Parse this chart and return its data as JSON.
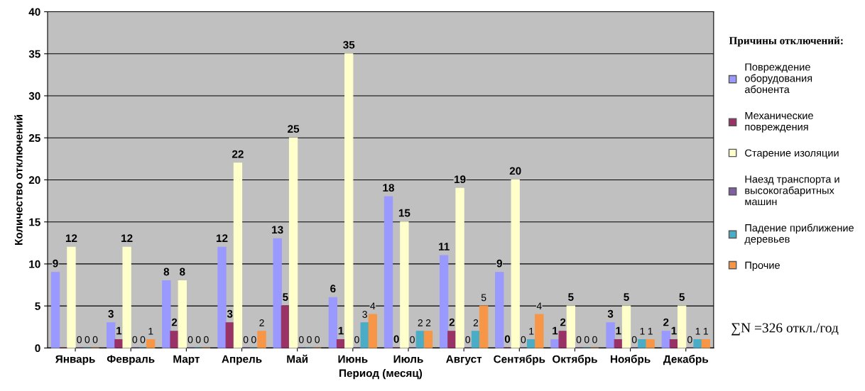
{
  "chart_data": {
    "type": "bar",
    "xlabel": "Период (месяц)",
    "ylabel": "Количество отключений",
    "legend_title": "Причины отключений:",
    "categories": [
      "Январь",
      "Февраль",
      "Март",
      "Апрель",
      "Май",
      "Июнь",
      "Июль",
      "Август",
      "Сентябрь",
      "Октябрь",
      "Ноябрь",
      "Декабрь"
    ],
    "series": [
      {
        "name": "Повреждение оборудования абонента",
        "color": "#9999ff",
        "values": [
          9,
          3,
          8,
          12,
          13,
          6,
          18,
          11,
          9,
          1,
          3,
          2
        ],
        "value_labels": [
          "9",
          "3",
          "8",
          "12",
          "13",
          "6",
          "18",
          "11",
          "9",
          "1",
          "3",
          "2"
        ]
      },
      {
        "name": "Механические повреждения",
        "color": "#993366",
        "values": [
          0,
          1,
          2,
          3,
          5,
          1,
          0,
          2,
          0,
          2,
          1,
          1
        ],
        "value_labels": [
          null,
          "1",
          "2",
          "3",
          "5",
          "1",
          "0",
          "2",
          "0",
          "2",
          "1",
          "1"
        ]
      },
      {
        "name": "Старение изоляции",
        "color": "#ffffcc",
        "values": [
          12,
          12,
          8,
          22,
          25,
          35,
          15,
          19,
          20,
          5,
          5,
          5
        ],
        "value_labels": [
          "12",
          "12",
          "8",
          "22",
          "25",
          "35",
          "15",
          "19",
          "20",
          "5",
          "5",
          "5"
        ]
      },
      {
        "name": "Наезд транспорта и высокогабаритных машин",
        "color": "#7f5f9f",
        "values": [
          0,
          0,
          0,
          0,
          0,
          0,
          0,
          0,
          0,
          0,
          0,
          0
        ],
        "value_labels": [
          "0",
          "0",
          "0",
          "0",
          "0",
          "0",
          "0",
          "0",
          "0",
          "0",
          "0",
          "0"
        ]
      },
      {
        "name": "Падение приближение деревьев",
        "color": "#4bacc6",
        "values": [
          0,
          0,
          0,
          0,
          0,
          3,
          2,
          2,
          1,
          0,
          1,
          1
        ],
        "value_labels": [
          "0",
          "0",
          "0",
          "0",
          "0",
          "3",
          "2",
          "2",
          "1",
          "0",
          "1",
          "1"
        ]
      },
      {
        "name": "Прочие",
        "color": "#f79646",
        "values": [
          0,
          1,
          0,
          2,
          0,
          4,
          2,
          5,
          4,
          0,
          1,
          1
        ],
        "value_labels": [
          "0",
          "1",
          "0",
          "2",
          "0",
          "4",
          "2",
          "5",
          "4",
          "0",
          "1",
          "1"
        ]
      }
    ],
    "ylim": [
      0,
      40
    ],
    "yticks": [
      0,
      5,
      10,
      15,
      20,
      25,
      30,
      35,
      40
    ],
    "grid": "y",
    "legend": "right",
    "annotations": [
      "∑N =326 откл./год"
    ]
  }
}
